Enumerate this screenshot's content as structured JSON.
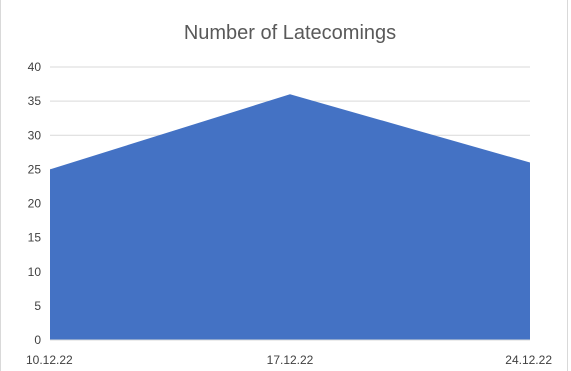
{
  "chart_data": {
    "type": "area",
    "title": "Number of Latecomings",
    "categories": [
      "10.12.22",
      "17.12.22",
      "24.12.22"
    ],
    "series": [
      {
        "values": [
          25,
          36,
          26
        ]
      }
    ],
    "yticks": [
      "0",
      "5",
      "10",
      "15",
      "20",
      "25",
      "30",
      "35",
      "40"
    ],
    "ylim": [
      0,
      40
    ],
    "grid": true,
    "legend": "none",
    "colors": {
      "fill": "#4472c4",
      "grid": "#d9d9d9",
      "axis": "#d9d9d9"
    }
  }
}
